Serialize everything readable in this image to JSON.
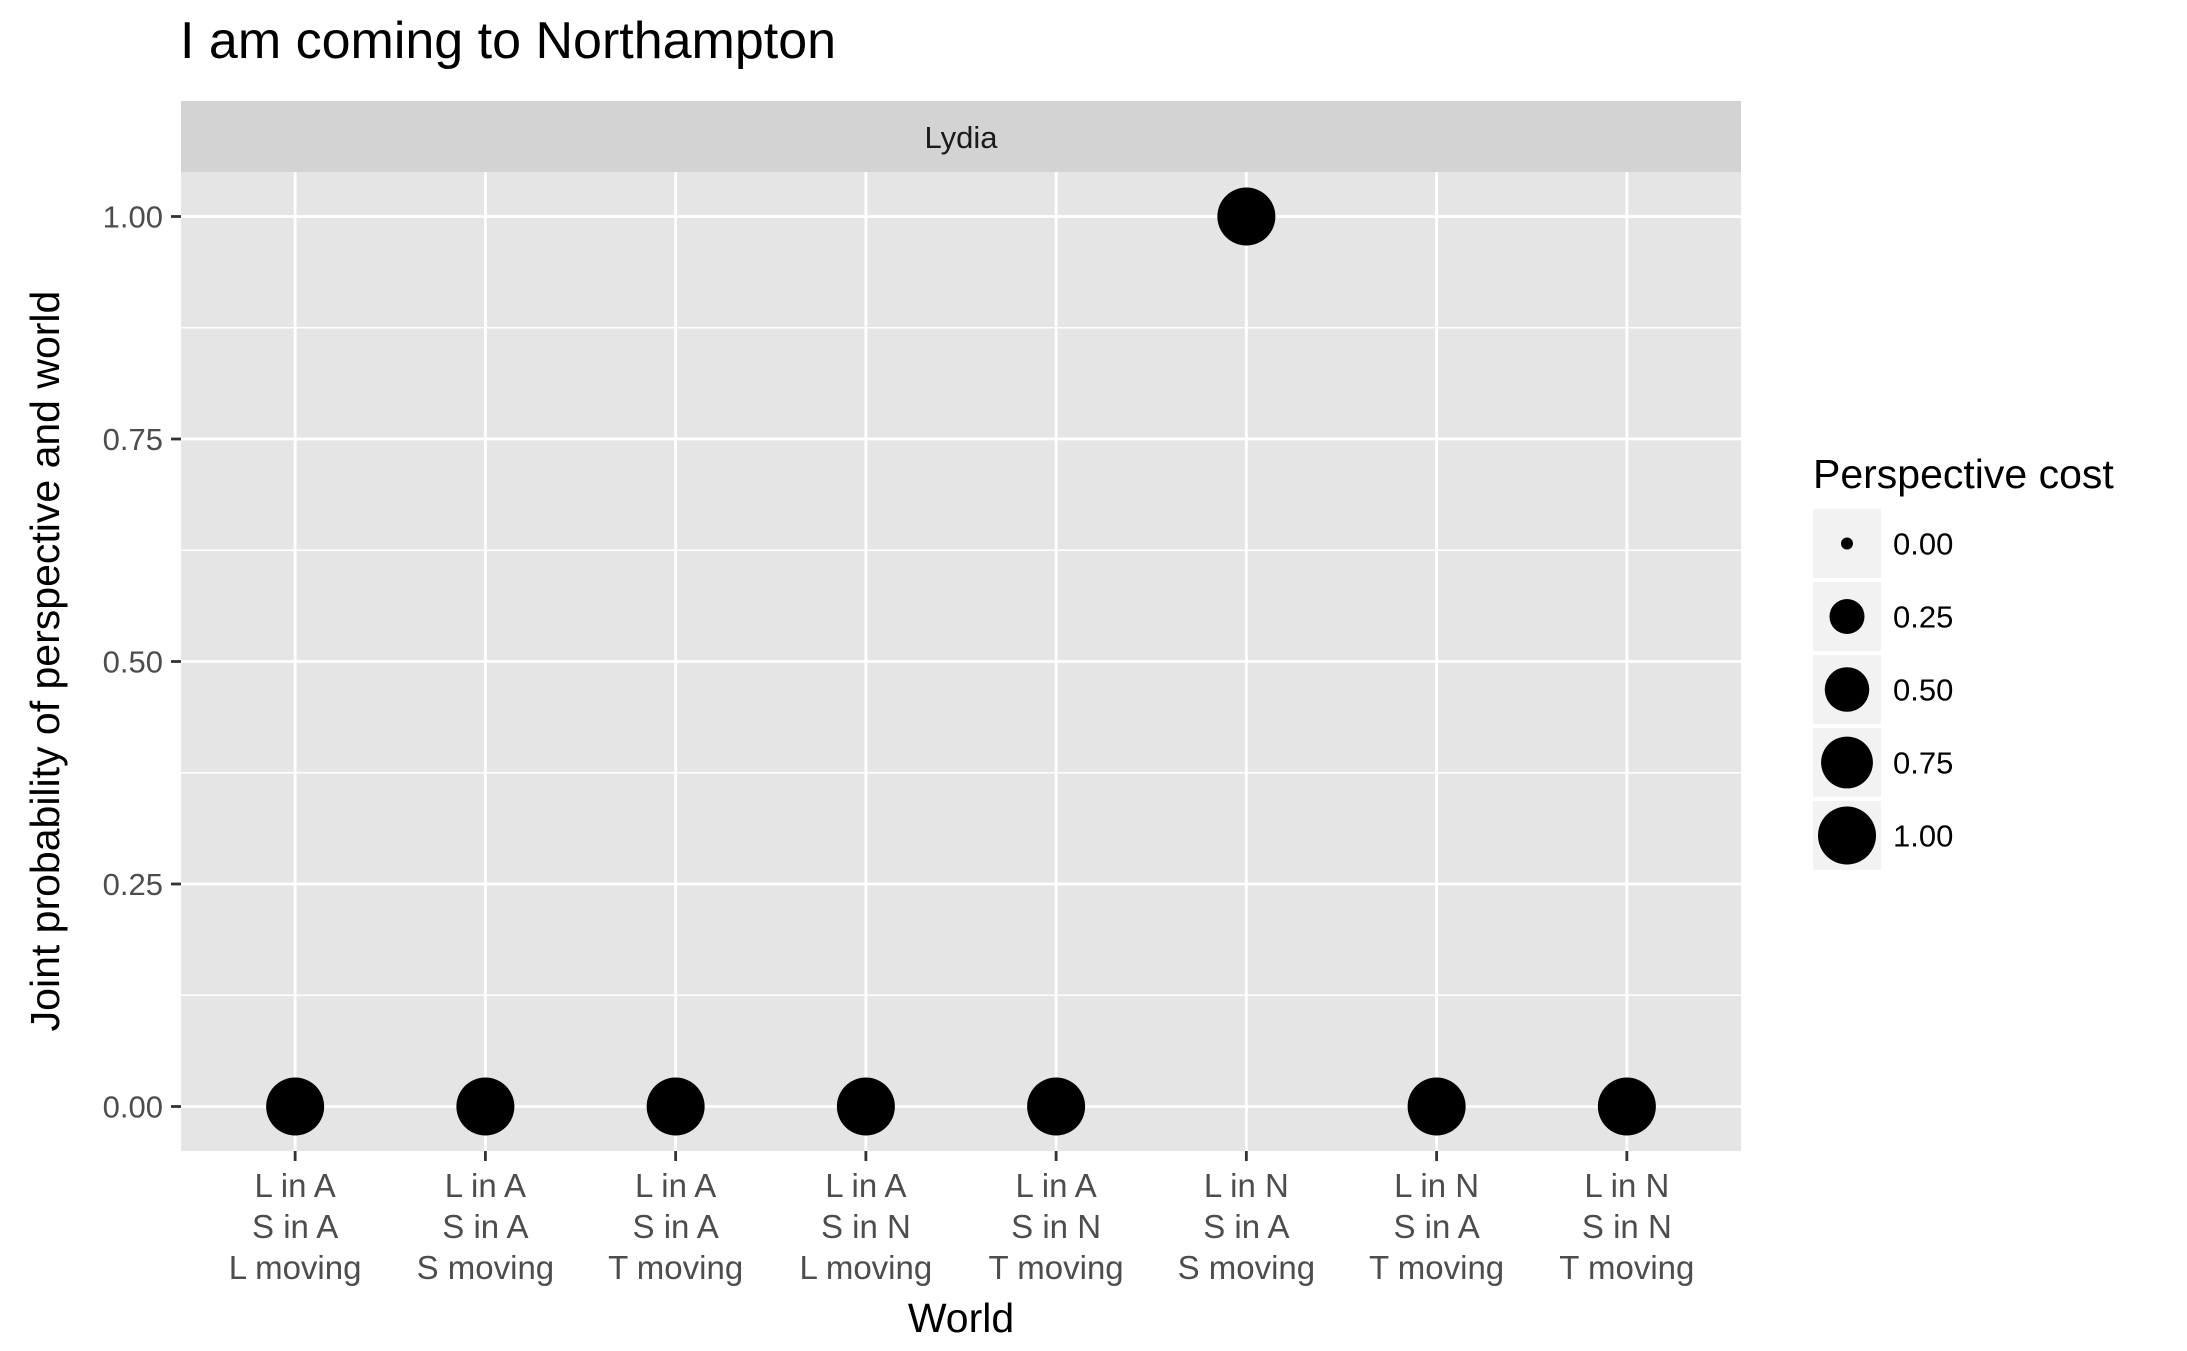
{
  "chart_data": {
    "type": "scatter",
    "title": "I am coming to Northampton",
    "facet_label": "Lydia",
    "xlabel": "World",
    "ylabel": "Joint probability of perspective and world",
    "categories": [
      [
        "L in A",
        "S in A",
        "L moving"
      ],
      [
        "L in A",
        "S in A",
        "S moving"
      ],
      [
        "L in A",
        "S in A",
        "T moving"
      ],
      [
        "L in A",
        "S in N",
        "L moving"
      ],
      [
        "L in A",
        "S in N",
        "T moving"
      ],
      [
        "L in N",
        "S in A",
        "S moving"
      ],
      [
        "L in N",
        "S in A",
        "T moving"
      ],
      [
        "L in N",
        "S in N",
        "T moving"
      ]
    ],
    "values": [
      0,
      0,
      0,
      0,
      0,
      1,
      0,
      0
    ],
    "sizes": [
      1,
      1,
      1,
      1,
      1,
      1,
      1,
      1
    ],
    "ylim": [
      -0.05,
      1.05
    ],
    "yticks": [
      "0.00",
      "0.25",
      "0.50",
      "0.75",
      "1.00"
    ],
    "legend": {
      "title": "Perspective cost",
      "position": "right",
      "items": [
        "0.00",
        "0.25",
        "0.50",
        "0.75",
        "1.00"
      ]
    },
    "grid": true,
    "colors": {
      "panel_bg": "#e5e5e5",
      "strip_bg": "#d3d3d3",
      "grid": "#ffffff",
      "point": "#000000",
      "text": "#000000",
      "tick_text": "#4d4d4d"
    }
  }
}
